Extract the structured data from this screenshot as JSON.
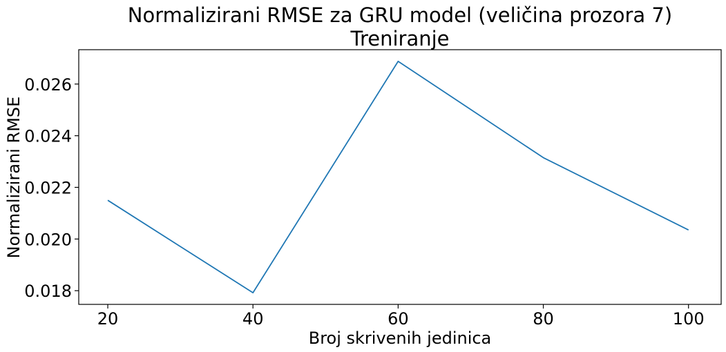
{
  "chart_data": {
    "type": "line",
    "title": "Normalizirani RMSE za GRU model (veličina prozora 7)",
    "subtitle": "Treniranje",
    "xlabel": "Broj skrivenih jedinica",
    "ylabel": "Normalizirani RMSE",
    "x": [
      20,
      40,
      60,
      80,
      100
    ],
    "series": [
      {
        "values": [
          0.0215,
          0.01792,
          0.02688,
          0.02315,
          0.02035
        ],
        "color": "#1f77b4"
      }
    ],
    "xlim": [
      16,
      104.5
    ],
    "ylim": [
      0.01747,
      0.02733
    ],
    "xticks": [
      20,
      40,
      60,
      80,
      100
    ],
    "xtick_labels": [
      "20",
      "40",
      "60",
      "80",
      "100"
    ],
    "yticks": [
      0.018,
      0.02,
      0.022,
      0.024,
      0.026
    ],
    "ytick_labels": [
      "0.018",
      "0.020",
      "0.022",
      "0.024",
      "0.026"
    ],
    "grid": false,
    "legend": "none"
  }
}
